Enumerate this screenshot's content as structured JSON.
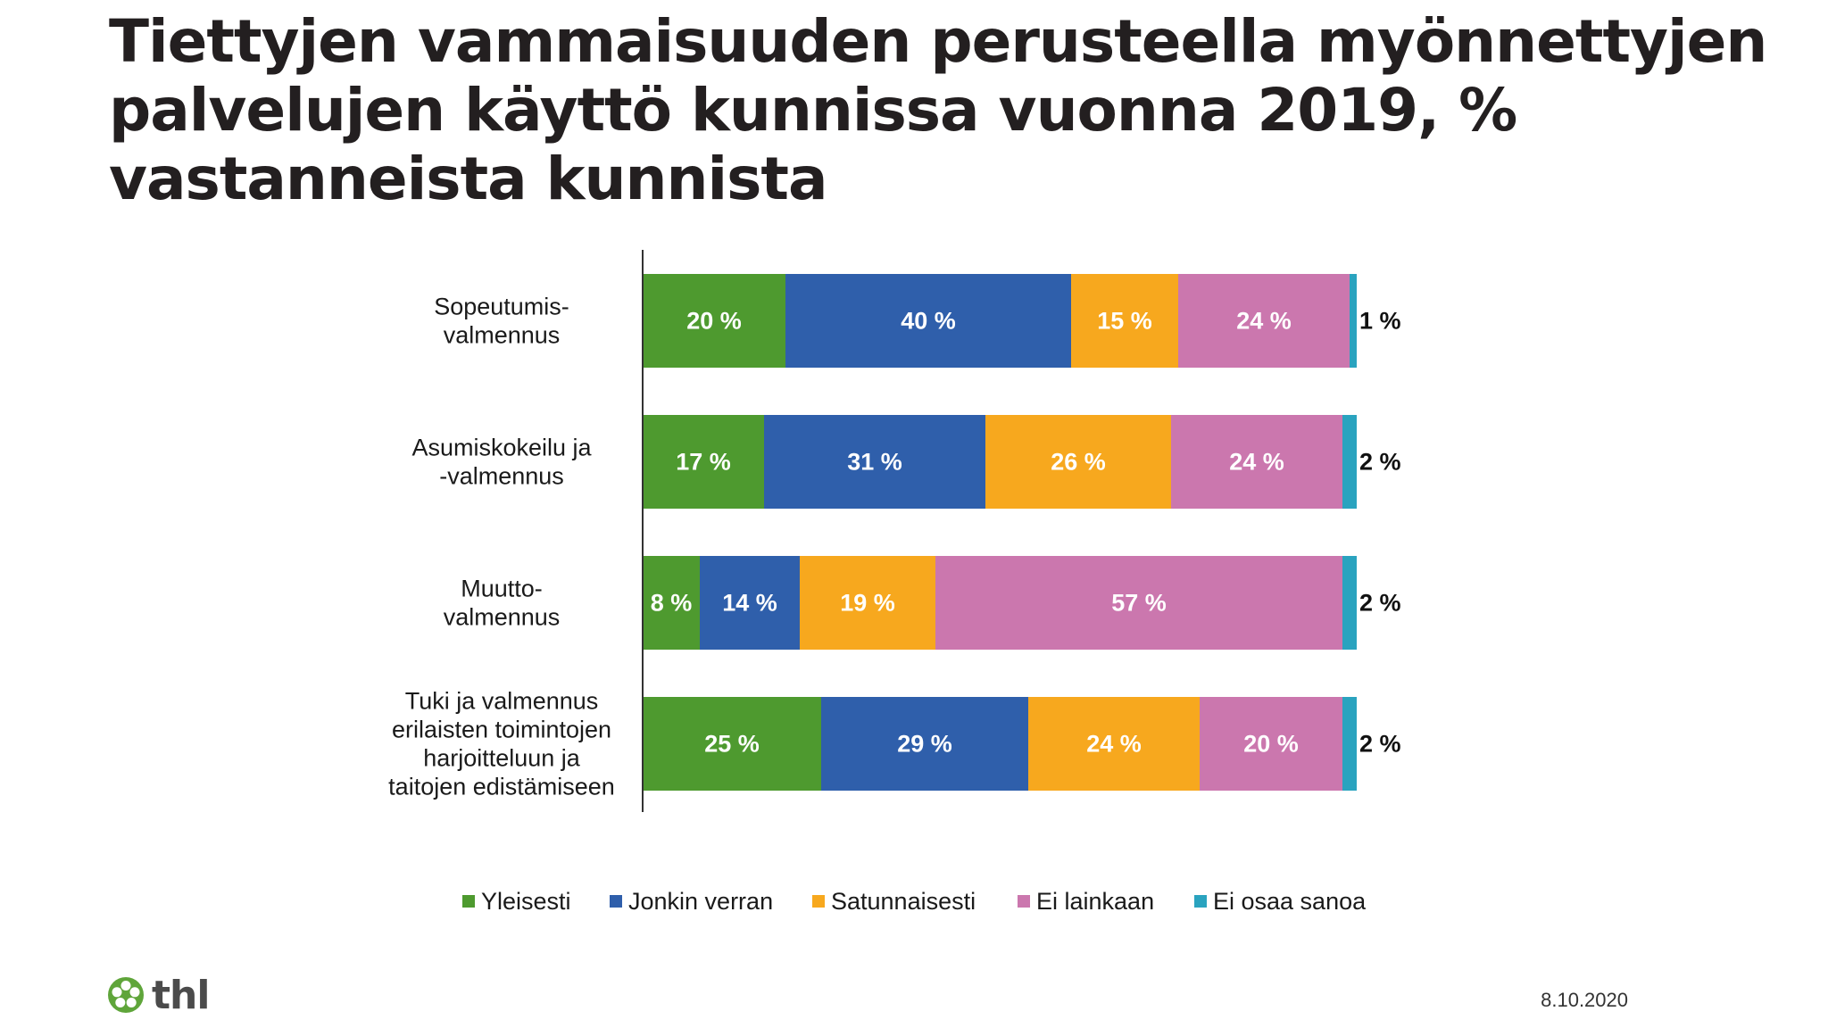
{
  "title_lines": [
    "Tiettyjen vammaisuuden perusteella myönnettyjen",
    "palvelujen käyttö kunnissa vuonna 2019, %",
    "vastanneista kunnista"
  ],
  "chart_data": {
    "type": "bar",
    "orientation": "horizontal",
    "stacked": true,
    "percent_suffix": " %",
    "categories": [
      [
        "Sopeutumis-",
        "valmennus"
      ],
      [
        "Asumiskokeilu ja",
        "-valmennus"
      ],
      [
        "Muutto-",
        "valmennus"
      ],
      [
        "Tuki ja valmennus",
        "erilaisten toimintojen",
        "harjoitteluun ja",
        "taitojen edistämiseen"
      ]
    ],
    "series": [
      {
        "name": "Yleisesti",
        "color": "#4e9a2f",
        "values": [
          20,
          17,
          8,
          25
        ]
      },
      {
        "name": "Jonkin verran",
        "color": "#2f5fab",
        "values": [
          40,
          31,
          14,
          29
        ]
      },
      {
        "name": "Satunnaisesti",
        "color": "#f7a81e",
        "values": [
          15,
          26,
          19,
          24
        ]
      },
      {
        "name": "Ei lainkaan",
        "color": "#cb77ae",
        "values": [
          24,
          24,
          57,
          20
        ]
      },
      {
        "name": "Ei osaa sanoa",
        "color": "#2aa3bf",
        "values": [
          1,
          2,
          2,
          2
        ]
      }
    ],
    "legend_position": "bottom",
    "grid": false
  },
  "footer": {
    "logo_text": "thl",
    "date": "8.10.2020"
  },
  "colors": {
    "title": "#231f20",
    "logo_green": "#5fa53a"
  }
}
